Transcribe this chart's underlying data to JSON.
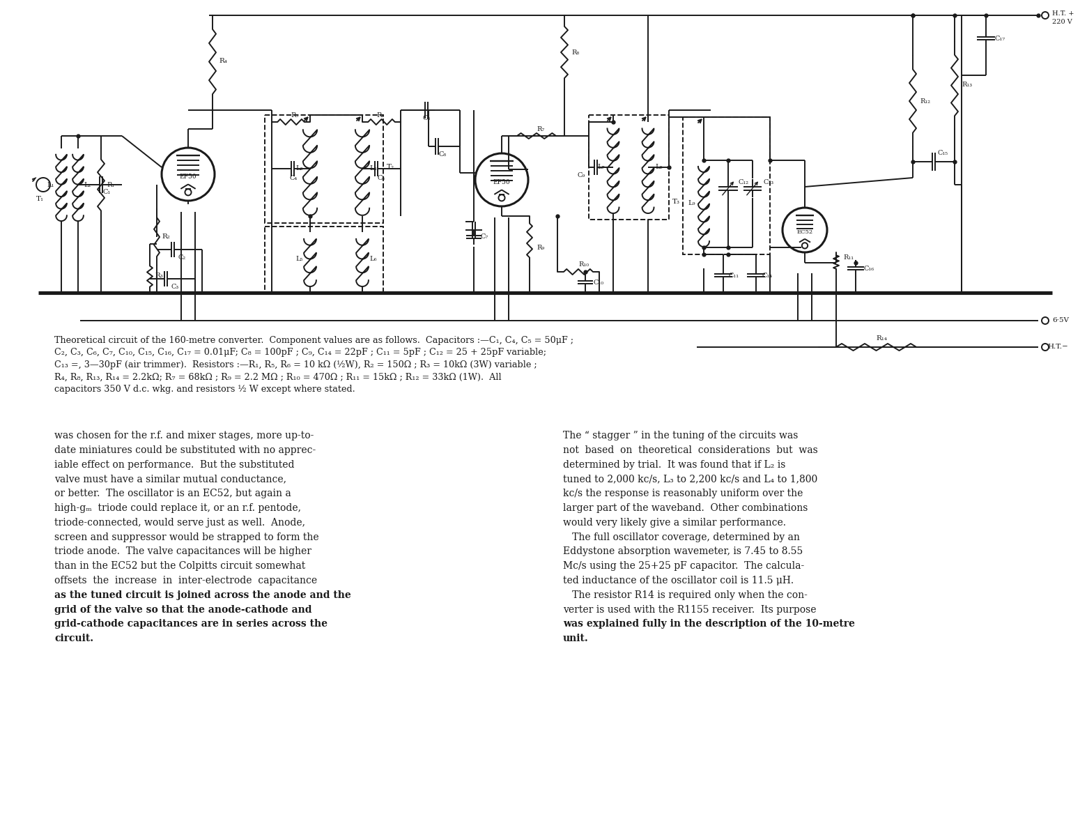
{
  "bg_color": "#ffffff",
  "ink": "#1a1a1a",
  "caption_lines": [
    "Theoretical circuit of the 160-metre converter.  Component values are as follows.  Capacitors :—C₁, C₄, C₅ = 50μF ;",
    "C₂, C₃, C₆, C₇, C₁₀, C₁₅, C₁₆, C₁₇ = 0.01μF; C₈ = 100pF ; C₉, C₁₄ = 22pF ; C₁₁ = 5pF ; C₁₂ = 25 + 25pF variable;",
    "C₁₃ =, 3—30pF (air trimmer).  Resistors :—R₁, R₅, R₆ = 10 kΩ (½W), R₂ = 150Ω ; R₃ = 10kΩ (3W) variable ;",
    "R₄, R₈, R₁₃, R₁₄ = 2.2kΩ; R₇ = 68kΩ ; R₉ = 2.2 MΩ ; R₁₀ = 470Ω ; R₁₁ = 15kΩ ; R₁₂ = 33kΩ (1W).  All",
    "capacitors 350 V d.c. wkg. and resistors ½ W except where stated."
  ],
  "col1_lines": [
    "was chosen for the r.f. and mixer stages, more up-to-",
    "date miniatures could be substituted with no apprec-",
    "iable effect on performance.  But the substituted",
    "valve must have a similar mutual conductance,",
    "or better.  The oscillator is an EC52, but again a",
    "high-gₘ  triode could replace it, or an r.f. pentode,",
    "triode-connected, would serve just as well.  Anode,",
    "screen and suppressor would be strapped to form the",
    "triode anode.  The valve capacitances will be higher",
    "than in the EC52 but the Colpitts circuit somewhat",
    "offsets  the  increase  in  inter-electrode  capacitance",
    "as the tuned circuit is joined across the anode and the",
    "grid of the valve so that the anode-cathode and",
    "grid-cathode capacitances are in series across the",
    "circuit."
  ],
  "col1_bold": [
    11,
    12,
    13,
    14
  ],
  "col2_lines": [
    "The “ stagger ” in the tuning of the circuits was",
    "not  based  on  theoretical  considerations  but  was",
    "determined by trial.  It was found that if L₂ is",
    "tuned to 2,000 kc/s, L₃ to 2,200 kc/s and L₄ to 1,800",
    "kc/s the response is reasonably uniform over the",
    "larger part of the waveband.  Other combinations",
    "would very likely give a similar performance.",
    "   The full oscillator coverage, determined by an",
    "Eddystone absorption wavemeter, is 7.45 to 8.55",
    "Mc/s using the 25+25 pF capacitor.  The calcula-",
    "ted inductance of the oscillator coil is 11.5 μH.",
    "   The resistor R14 is required only when the con-",
    "verter is used with the R1155 receiver.  Its purpose",
    "was explained fully in the description of the 10-metre",
    "unit."
  ],
  "col2_bold": [
    13,
    14
  ]
}
